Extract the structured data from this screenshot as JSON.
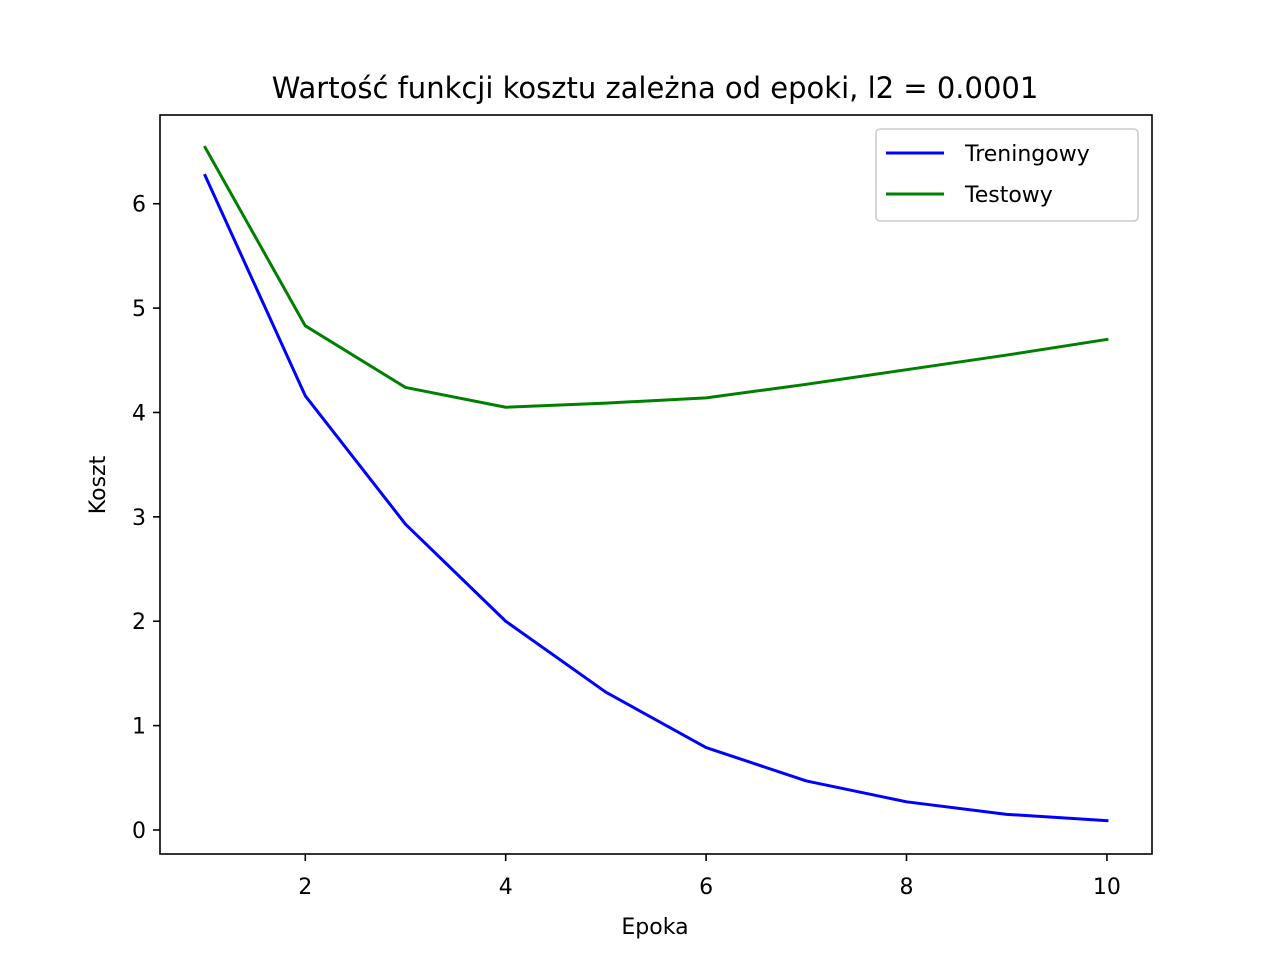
{
  "chart_data": {
    "type": "line",
    "title": "Wartość funkcji kosztu zależna od epoki, l2 = 0.0001",
    "xlabel": "Epoka",
    "ylabel": "Koszt",
    "x": [
      1,
      2,
      3,
      4,
      5,
      6,
      7,
      8,
      9,
      10
    ],
    "xlim": [
      0.55,
      10.45
    ],
    "ylim": [
      -0.23,
      6.85
    ],
    "xticks": [
      2,
      4,
      6,
      8,
      10
    ],
    "yticks": [
      0,
      1,
      2,
      3,
      4,
      5,
      6
    ],
    "grid": false,
    "legend_position": "top-right",
    "series": [
      {
        "name": "Treningowy",
        "color": "#0000ff",
        "values": [
          6.27,
          4.16,
          2.93,
          2.0,
          1.32,
          0.79,
          0.47,
          0.27,
          0.15,
          0.09
        ]
      },
      {
        "name": "Testowy",
        "color": "#008000",
        "values": [
          6.54,
          4.83,
          4.24,
          4.05,
          4.09,
          4.14,
          4.27,
          4.41,
          4.55,
          4.7
        ]
      }
    ]
  }
}
